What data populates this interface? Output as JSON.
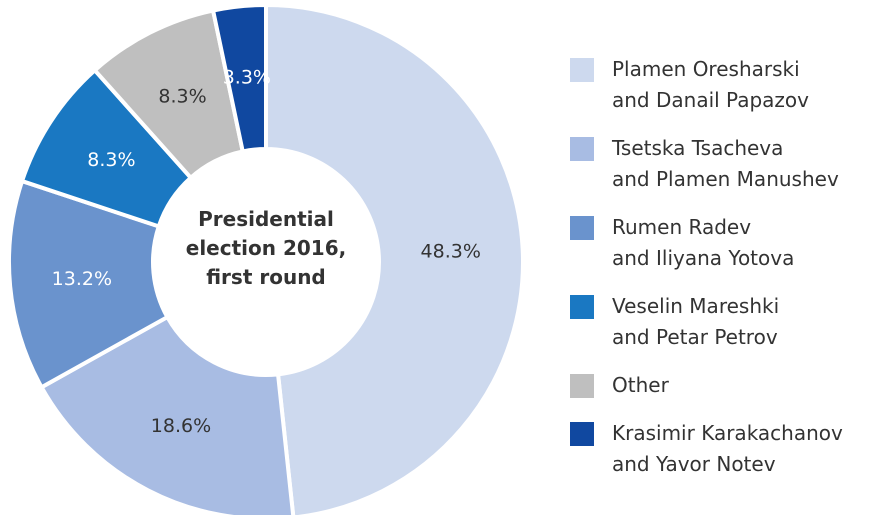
{
  "chart_data": {
    "type": "donut",
    "title": "Presidential\nelection 2016,\nfirst round",
    "categories": [
      "Plamen Oresharski\nand Danail Papazov",
      "Tsetska Tsacheva\nand Plamen Manushev",
      "Rumen Radev\nand Iliyana Yotova",
      "Veselin Mareshki\nand Petar Petrov",
      "Other",
      "Krasimir Karakachanov\nand Yavor Notev"
    ],
    "values": [
      48.3,
      18.6,
      13.2,
      8.3,
      8.3,
      3.3
    ],
    "value_labels": [
      "48.3%",
      "18.6%",
      "13.2%",
      "8.3%",
      "8.3%",
      "3.3%"
    ],
    "colors": [
      "#cdd9ee",
      "#a8bce3",
      "#6a93cd",
      "#1a78c2",
      "#bfbfbf",
      "#1048a0"
    ],
    "label_colors": [
      "#333333",
      "#333333",
      "#ffffff",
      "#ffffff",
      "#333333",
      "#ffffff"
    ],
    "legend": "right"
  }
}
